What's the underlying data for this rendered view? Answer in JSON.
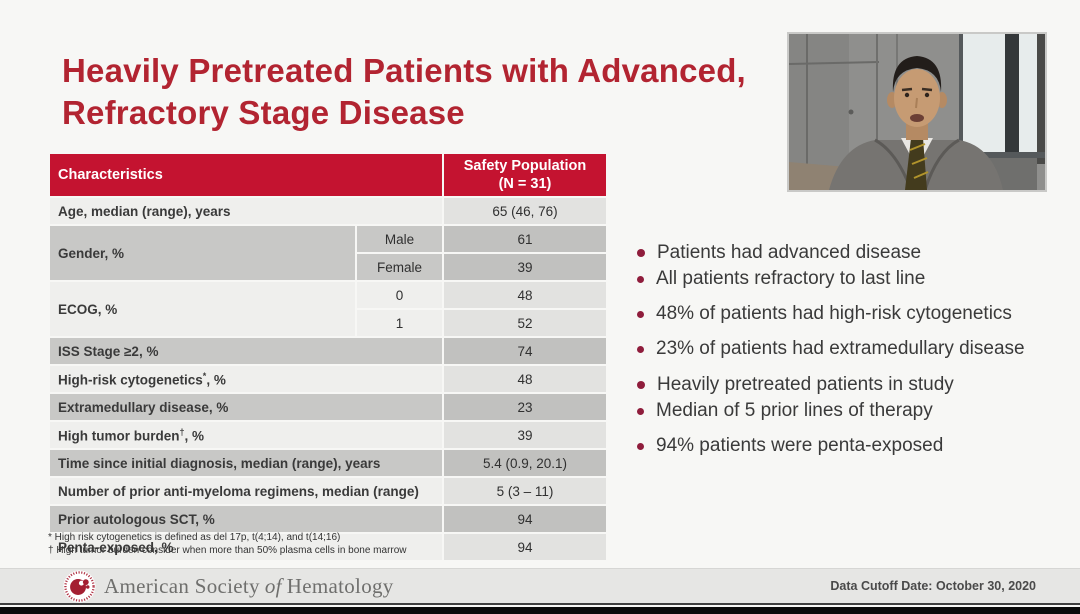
{
  "slide": {
    "title": "Heavily Pretreated Patients with Advanced,\nRefractory Stage Disease"
  },
  "table": {
    "header": {
      "characteristics": "Characteristics",
      "population": "Safety Population\n(N = 31)"
    },
    "rows": [
      {
        "label": "Age, median (range), years",
        "label_sup": "",
        "label_suffix": "",
        "sub": null,
        "value": "65 (46, 76)",
        "shade": "light",
        "rowspan": 1,
        "has_sub": false
      },
      {
        "label": "Gender, %",
        "label_sup": "",
        "label_suffix": "",
        "sub": "Male",
        "value": "61",
        "shade": "dark",
        "rowspan": 2,
        "has_sub": true
      },
      {
        "label": null,
        "sub": "Female",
        "value": "39",
        "shade": "dark",
        "has_sub": true
      },
      {
        "label": "ECOG, %",
        "label_sup": "",
        "label_suffix": "",
        "sub": "0",
        "value": "48",
        "shade": "light",
        "rowspan": 2,
        "has_sub": true
      },
      {
        "label": null,
        "sub": "1",
        "value": "52",
        "shade": "light",
        "has_sub": true
      },
      {
        "label": "ISS Stage ≥2,  %",
        "label_sup": "",
        "label_suffix": "",
        "sub": null,
        "value": "74",
        "shade": "dark",
        "has_sub": false
      },
      {
        "label": "High-risk cytogenetics",
        "label_sup": "*",
        "label_suffix": ", %",
        "sub": null,
        "value": "48",
        "shade": "light",
        "has_sub": false
      },
      {
        "label": "Extramedullary disease, %",
        "label_sup": "",
        "label_suffix": "",
        "sub": null,
        "value": "23",
        "shade": "dark",
        "has_sub": false
      },
      {
        "label": "High tumor burden",
        "label_sup": "†",
        "label_suffix": ", %",
        "sub": null,
        "value": "39",
        "shade": "light",
        "has_sub": false
      },
      {
        "label": "Time since initial diagnosis, median (range), years",
        "label_sup": "",
        "label_suffix": "",
        "sub": null,
        "value": "5.4 (0.9, 20.1)",
        "shade": "dark",
        "has_sub": false
      },
      {
        "label": "Number of prior anti-myeloma regimens, median (range)",
        "label_sup": "",
        "label_suffix": "",
        "sub": null,
        "value": "5 (3 – 11)",
        "shade": "light",
        "has_sub": false
      },
      {
        "label": "Prior autologous SCT, %",
        "label_sup": "",
        "label_suffix": "",
        "sub": null,
        "value": "94",
        "shade": "dark",
        "has_sub": false
      },
      {
        "label": "Penta-exposed, %",
        "label_sup": "",
        "label_suffix": "",
        "sub": null,
        "value": "94",
        "shade": "light",
        "has_sub": false
      }
    ],
    "footnotes": [
      "* High risk cytogenetics is defined as del 17p, t(4;14), and t(14;16)",
      "† High tumor burden consider when more than 50% plasma cells in bone marrow"
    ]
  },
  "bullets": [
    {
      "text": "Patients had advanced disease",
      "subs": [
        "All patients refractory to last line",
        "48% of patients had high-risk cytogenetics",
        "23% of patients had extramedullary disease"
      ]
    },
    {
      "text": "Heavily pretreated patients in study",
      "subs": [
        "Median of 5 prior lines of therapy",
        "94% patients were penta-exposed"
      ]
    }
  ],
  "footer": {
    "brand_part1": "American Society",
    "brand_part2_italic": "of",
    "brand_part3": "Hematology",
    "data_cutoff": "Data Cutoff Date: October 30, 2020"
  },
  "colors": {
    "table_header_red": "#C41330",
    "title_red": "#B22431",
    "bullet_maroon": "#8F1D3C",
    "row_light": "#EFEFED",
    "row_dark": "#C8C8C6",
    "footer_bar": "#E6E6E4",
    "slide_background": "#F7F7F5"
  }
}
